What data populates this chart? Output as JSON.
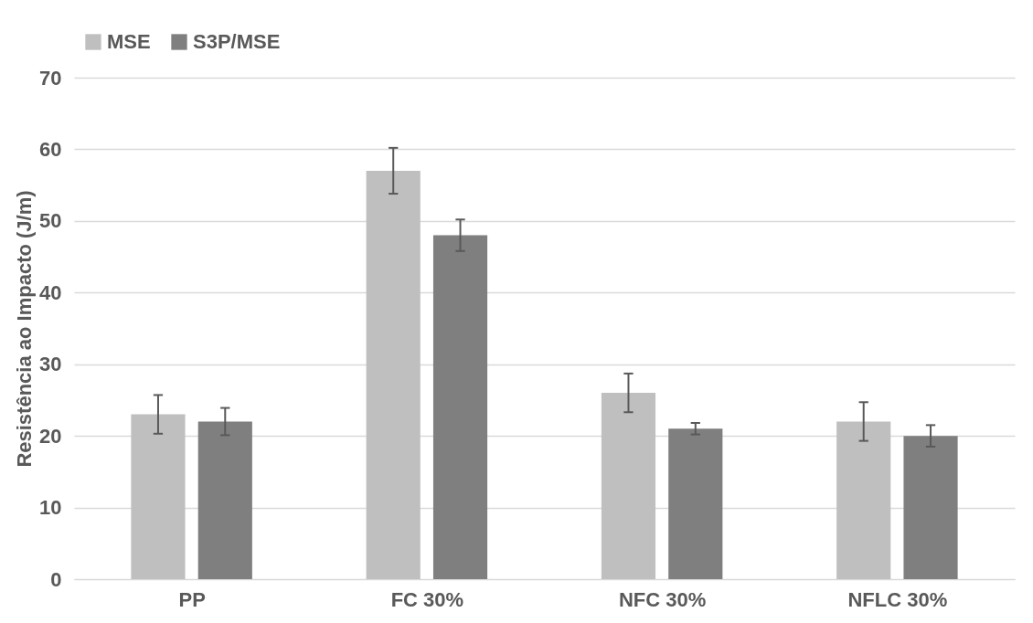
{
  "chart_data": {
    "type": "bar",
    "ylabel": "Resistência ao Impacto (J/m)",
    "categories": [
      "PP",
      "FC 30%",
      "NFC 30%",
      "NFLC 30%"
    ],
    "series": [
      {
        "name": "MSE",
        "color": "#bfbfbf",
        "values": [
          23,
          57,
          26,
          22
        ],
        "errors": [
          2.7,
          3.2,
          2.7,
          2.7
        ]
      },
      {
        "name": "S3P/MSE",
        "color": "#7f7f7f",
        "values": [
          22,
          48,
          21,
          20
        ],
        "errors": [
          1.9,
          2.2,
          0.8,
          1.5
        ]
      }
    ],
    "ylim": [
      0,
      70
    ],
    "yticks": [
      0,
      10,
      20,
      30,
      40,
      50,
      60,
      70
    ],
    "grid": "y",
    "legend": "top"
  }
}
